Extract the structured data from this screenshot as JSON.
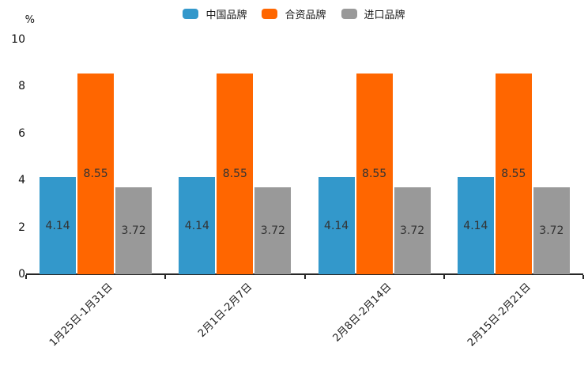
{
  "chart_data": {
    "type": "bar",
    "title": "",
    "unit_label": "%",
    "categories": [
      "1月25日-1月31日",
      "2月1日-2月7日",
      "2月8日-2月14日",
      "2月15日-2月21日"
    ],
    "series": [
      {
        "name": "中国品牌",
        "color": "#3398cb",
        "values": [
          4.14,
          4.14,
          4.14,
          4.14
        ]
      },
      {
        "name": "合资品牌",
        "color": "#ff6600",
        "values": [
          8.55,
          8.55,
          8.55,
          8.55
        ]
      },
      {
        "name": "进口品牌",
        "color": "#999999",
        "values": [
          3.72,
          3.72,
          3.72,
          3.72
        ]
      }
    ],
    "ylim": [
      0,
      10
    ],
    "yticks": [
      0,
      2,
      4,
      6,
      8,
      10
    ],
    "grid": false,
    "legend_position": "top-center",
    "value_label_position": "inside-center",
    "xlabel_rotation_deg": 45,
    "colors": {
      "axis": "#262626",
      "tick_text": "#111111",
      "value_text": "#333333"
    }
  }
}
